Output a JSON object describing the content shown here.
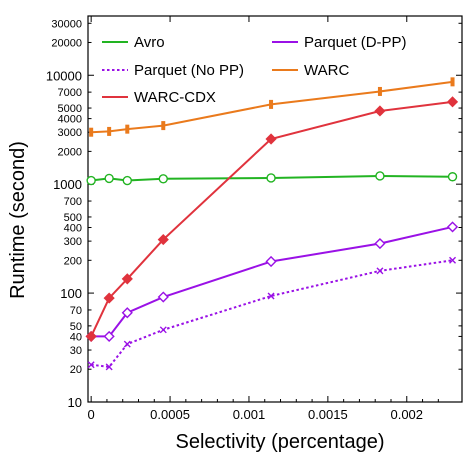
{
  "chart_data": {
    "type": "line",
    "xlabel": "Selectivity (percentage)",
    "ylabel": "Runtime (second)",
    "xlim": [
      -2e-05,
      0.00235
    ],
    "ylim": [
      10,
      35000
    ],
    "y_scale": "log",
    "grid": false,
    "legend": "top, two columns inside plot",
    "x_ticks": [
      0,
      0.0005,
      0.001,
      0.0015,
      0.002
    ],
    "x_tick_labels": [
      "0",
      "0.0005",
      "0.001",
      "0.0015",
      "0.002"
    ],
    "y_ticks": [
      {
        "v": 10,
        "label": "10",
        "major": true
      },
      {
        "v": 20,
        "label": "20",
        "major": false
      },
      {
        "v": 30,
        "label": "30",
        "major": false
      },
      {
        "v": 40,
        "label": "40",
        "major": false
      },
      {
        "v": 50,
        "label": "50",
        "major": false
      },
      {
        "v": 70,
        "label": "70",
        "major": false
      },
      {
        "v": 100,
        "label": "100",
        "major": true
      },
      {
        "v": 200,
        "label": "200",
        "major": false
      },
      {
        "v": 300,
        "label": "300",
        "major": false
      },
      {
        "v": 400,
        "label": "400",
        "major": false
      },
      {
        "v": 500,
        "label": "500",
        "major": false
      },
      {
        "v": 700,
        "label": "700",
        "major": false
      },
      {
        "v": 1000,
        "label": "1000",
        "major": true
      },
      {
        "v": 2000,
        "label": "2000",
        "major": false
      },
      {
        "v": 3000,
        "label": "3000",
        "major": false
      },
      {
        "v": 4000,
        "label": "4000",
        "major": false
      },
      {
        "v": 5000,
        "label": "5000",
        "major": false
      },
      {
        "v": 7000,
        "label": "7000",
        "major": false
      },
      {
        "v": 10000,
        "label": "10000",
        "major": true
      },
      {
        "v": 20000,
        "label": "20000",
        "major": false
      },
      {
        "v": 30000,
        "label": "30000",
        "major": false
      }
    ],
    "series": [
      {
        "name": "Avro",
        "color": "#22b422",
        "marker": "circle",
        "dash": false,
        "x": [
          0,
          0.000114,
          0.000229,
          0.000457,
          0.00114,
          0.00183,
          0.00229
        ],
        "y": [
          1080,
          1130,
          1080,
          1120,
          1140,
          1190,
          1170
        ]
      },
      {
        "name": "Parquet (D-PP)",
        "color": "#9a11e6",
        "marker": "diamond",
        "dash": false,
        "x": [
          0,
          0.000114,
          0.000229,
          0.000457,
          0.00114,
          0.00183,
          0.00229
        ],
        "y": [
          40,
          40,
          66,
          92,
          195,
          285,
          405
        ]
      },
      {
        "name": "Parquet (No PP)",
        "color": "#9a11e6",
        "marker": "x",
        "dash": true,
        "x": [
          0,
          0.000114,
          0.000229,
          0.000457,
          0.00114,
          0.00183,
          0.00229
        ],
        "y": [
          22,
          21,
          34,
          46,
          94,
          160,
          200
        ]
      },
      {
        "name": "WARC",
        "color": "#ea7a1c",
        "marker": "bar",
        "dash": false,
        "x": [
          0,
          0.000114,
          0.000229,
          0.000457,
          0.00114,
          0.00183,
          0.00229
        ],
        "y": [
          3000,
          3050,
          3200,
          3450,
          5400,
          7100,
          8700
        ]
      },
      {
        "name": "WARC-CDX",
        "color": "#e0333d",
        "marker": "diamond-filled",
        "dash": false,
        "x": [
          0,
          0.000114,
          0.000229,
          0.000457,
          0.00114,
          0.00183,
          0.00229
        ],
        "y": [
          40,
          90,
          135,
          310,
          2600,
          4700,
          5700
        ]
      }
    ]
  }
}
